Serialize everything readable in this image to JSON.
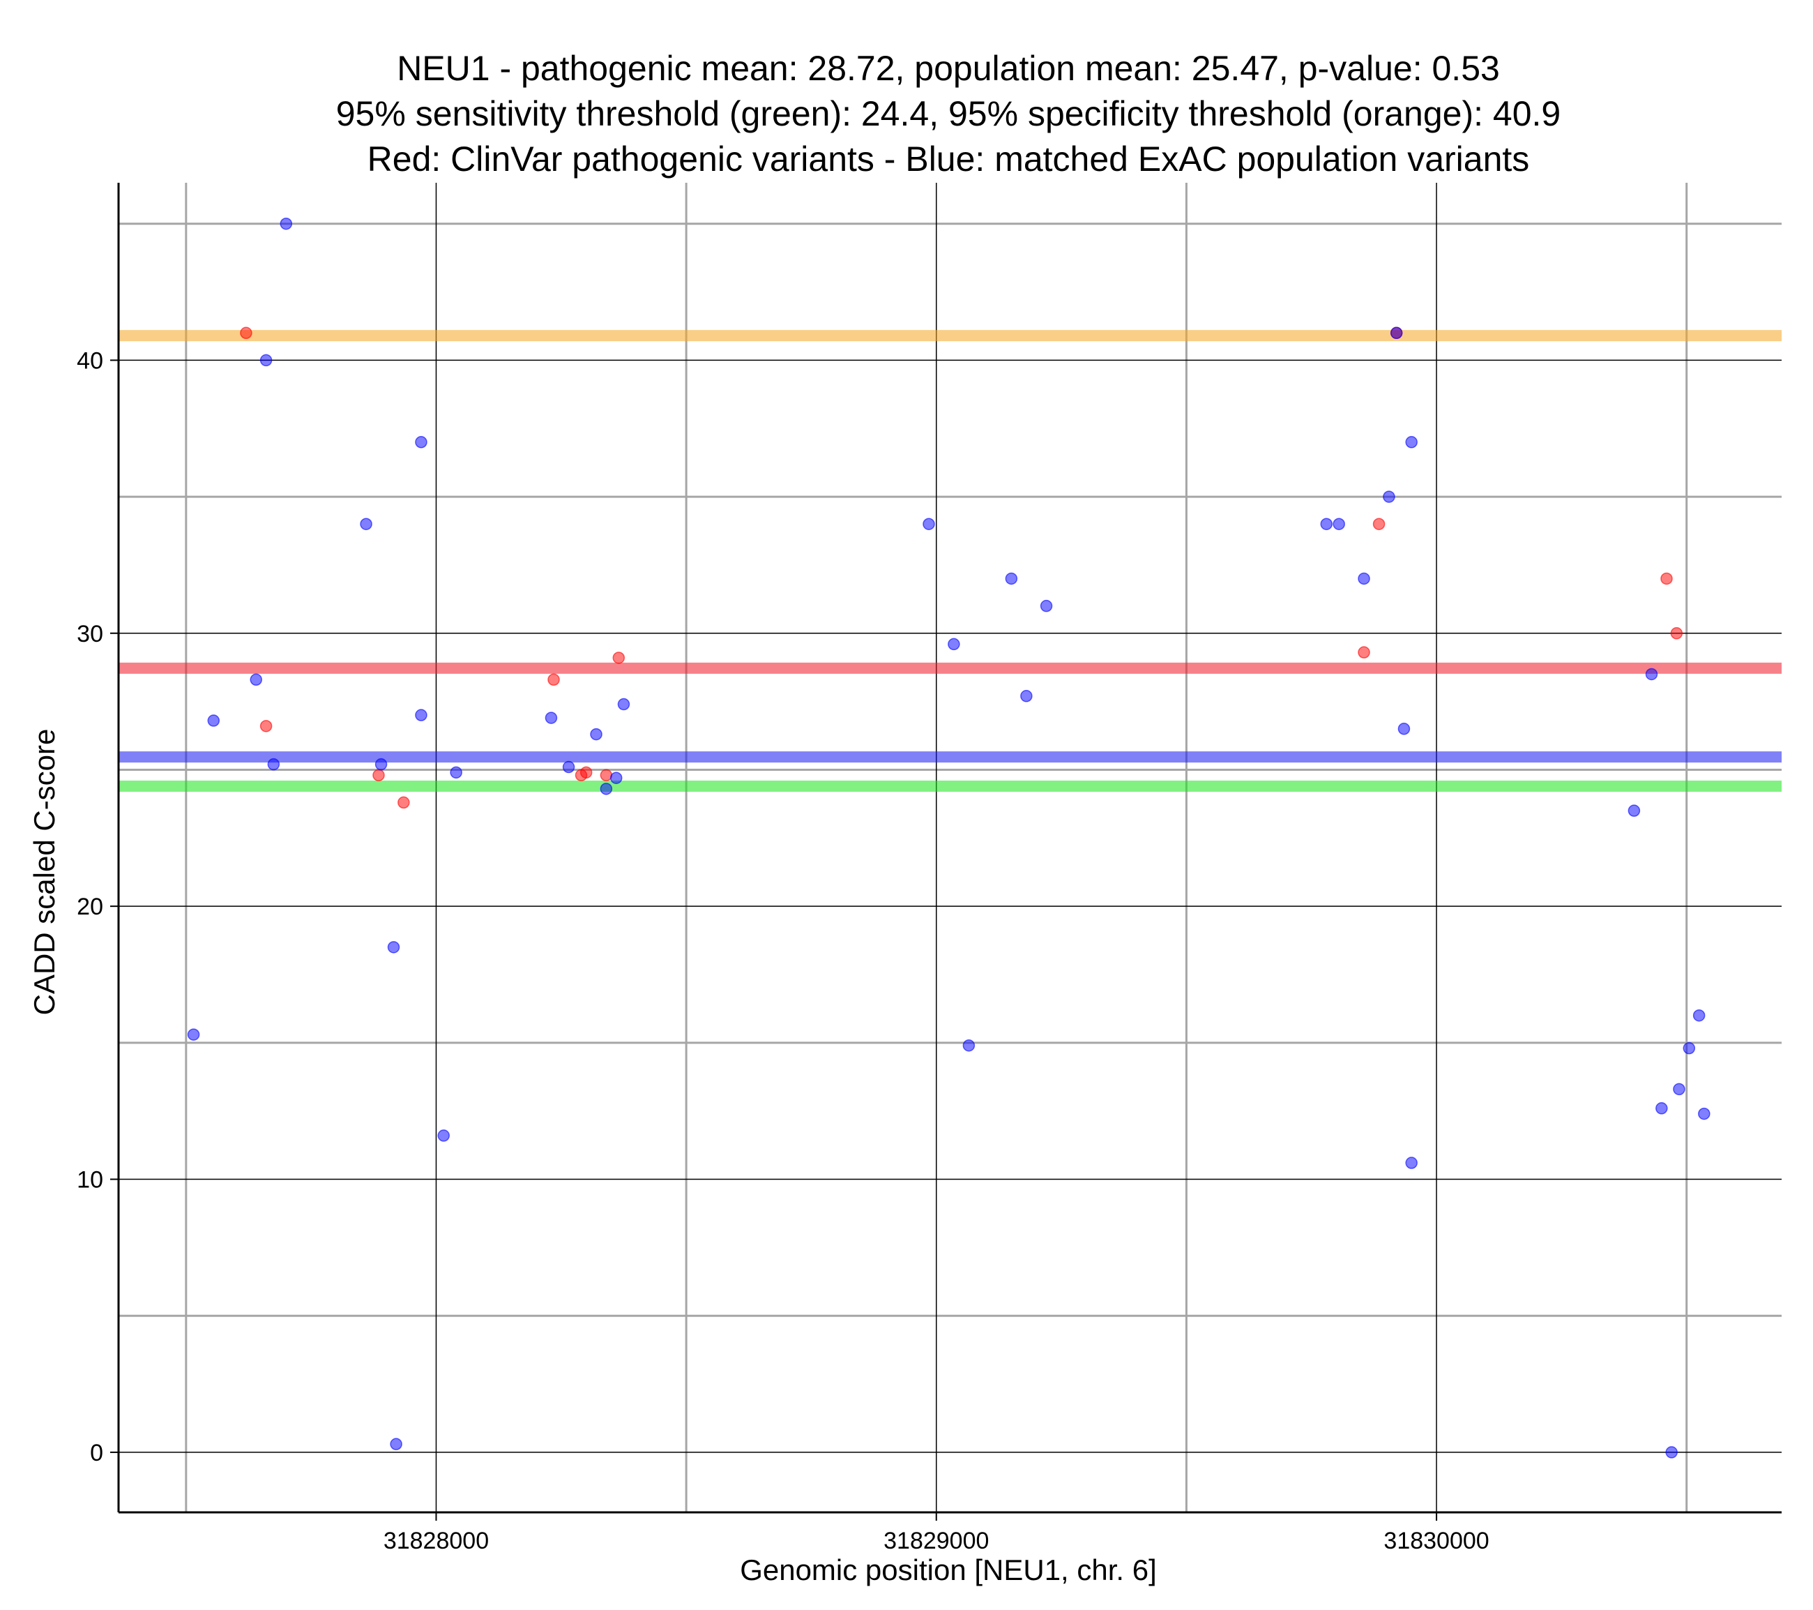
{
  "chart_data": {
    "type": "scatter",
    "title_lines": [
      "NEU1 - pathogenic mean: 28.72, population mean: 25.47, p-value: 0.53",
      "95% sensitivity threshold (green): 24.4, 95% specificity threshold (orange): 40.9",
      "Red: ClinVar pathogenic variants - Blue: matched ExAC population variants"
    ],
    "xlabel": "Genomic position [NEU1, chr. 6]",
    "ylabel": "CADD scaled C-score",
    "xlim": [
      31827365,
      31830690
    ],
    "ylim": [
      -2.2,
      46.5
    ],
    "xticks": [
      {
        "value": 31828000,
        "label": "31828000"
      },
      {
        "value": 31829000,
        "label": "31829000"
      },
      {
        "value": 31830000,
        "label": "31830000"
      }
    ],
    "xminor": [
      31827500,
      31828500,
      31829500,
      31830500
    ],
    "yticks": [
      {
        "value": 0,
        "label": "0"
      },
      {
        "value": 10,
        "label": "10"
      },
      {
        "value": 20,
        "label": "20"
      },
      {
        "value": 30,
        "label": "30"
      },
      {
        "value": 40,
        "label": "40"
      }
    ],
    "yminor": [
      5,
      15,
      25,
      35,
      45
    ],
    "hlines": [
      {
        "name": "specificity-threshold",
        "value": 40.9,
        "color": "#f5a623"
      },
      {
        "name": "pathogenic-mean",
        "value": 28.72,
        "color": "#f01a28"
      },
      {
        "name": "population-mean",
        "value": 25.47,
        "color": "#1a1af0"
      },
      {
        "name": "sensitivity-threshold",
        "value": 24.4,
        "color": "#1ae61a"
      }
    ],
    "colors": {
      "pathogenic": "#ff0000",
      "population": "#0000ff",
      "grid_major": "#000000",
      "grid_minor": "#a6a6a6"
    },
    "series": [
      {
        "name": "ClinVar pathogenic variants",
        "key": "pathogenic",
        "points": [
          [
            31827620,
            41.0
          ],
          [
            31827660,
            26.6
          ],
          [
            31827885,
            24.8
          ],
          [
            31827935,
            23.8
          ],
          [
            31828235,
            28.3
          ],
          [
            31828290,
            24.8
          ],
          [
            31828300,
            24.9
          ],
          [
            31828340,
            24.8
          ],
          [
            31828365,
            29.1
          ],
          [
            31829855,
            29.3
          ],
          [
            31829885,
            34.0
          ],
          [
            31829920,
            41.0
          ],
          [
            31830460,
            32.0
          ],
          [
            31830480,
            30.0
          ]
        ]
      },
      {
        "name": "matched ExAC population variants",
        "key": "population",
        "points": [
          [
            31827515,
            15.3
          ],
          [
            31827555,
            26.8
          ],
          [
            31827640,
            28.3
          ],
          [
            31827660,
            40.0
          ],
          [
            31827675,
            25.2
          ],
          [
            31827700,
            45.0
          ],
          [
            31827860,
            34.0
          ],
          [
            31827890,
            25.2
          ],
          [
            31827915,
            18.5
          ],
          [
            31827920,
            0.3
          ],
          [
            31827970,
            37.0
          ],
          [
            31827970,
            27.0
          ],
          [
            31828015,
            11.6
          ],
          [
            31828040,
            24.9
          ],
          [
            31828230,
            26.9
          ],
          [
            31828265,
            25.1
          ],
          [
            31828320,
            26.3
          ],
          [
            31828340,
            24.3
          ],
          [
            31828360,
            24.7
          ],
          [
            31828375,
            27.4
          ],
          [
            31828985,
            34.0
          ],
          [
            31829035,
            29.6
          ],
          [
            31829065,
            14.9
          ],
          [
            31829150,
            32.0
          ],
          [
            31829180,
            27.7
          ],
          [
            31829220,
            31.0
          ],
          [
            31829780,
            34.0
          ],
          [
            31829805,
            34.0
          ],
          [
            31829855,
            32.0
          ],
          [
            31829905,
            35.0
          ],
          [
            31829920,
            41.0
          ],
          [
            31829935,
            26.5
          ],
          [
            31829950,
            37.0
          ],
          [
            31829950,
            10.6
          ],
          [
            31830395,
            23.5
          ],
          [
            31830430,
            28.5
          ],
          [
            31830450,
            12.6
          ],
          [
            31830470,
            0.0
          ],
          [
            31830485,
            13.3
          ],
          [
            31830505,
            14.8
          ],
          [
            31830525,
            16.0
          ],
          [
            31830535,
            12.4
          ]
        ]
      }
    ]
  }
}
